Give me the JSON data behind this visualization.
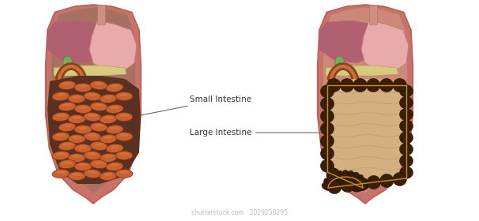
{
  "background_color": "#ffffff",
  "label_small": "Small Intestine",
  "label_large": "Large Intestine",
  "label_fontsize": 7.5,
  "label_color": "#333333",
  "body_skin": "#c8736a",
  "body_skin_edge": "#b56058",
  "body_inner_left": "#a87060",
  "body_inner_right": "#c8907a",
  "liver_color": "#b06070",
  "stomach_color": "#e8aaaa",
  "stomach_edge": "#c07878",
  "gallbladder_color": "#7aaa5a",
  "gallbladder_edge": "#5a8838",
  "duodenum_color": "#8B4513",
  "pancreas_color": "#d8c880",
  "small_int_bg": "#5a3020",
  "small_int_color": "#c86030",
  "small_int_edge": "#7a3518",
  "large_int_color": "#3a1e08",
  "large_int_edge": "#1a0e04",
  "large_int_band": "#c89020",
  "large_int_inner": "#d4b080",
  "large_int_mucosal": "#b09060",
  "esoph_color": "#d09080",
  "esoph_edge": "#b07060",
  "watermark_text": "shutterstock.com · 2029258295",
  "watermark_fontsize": 5.5,
  "watermark_color": "#aaaaaa"
}
